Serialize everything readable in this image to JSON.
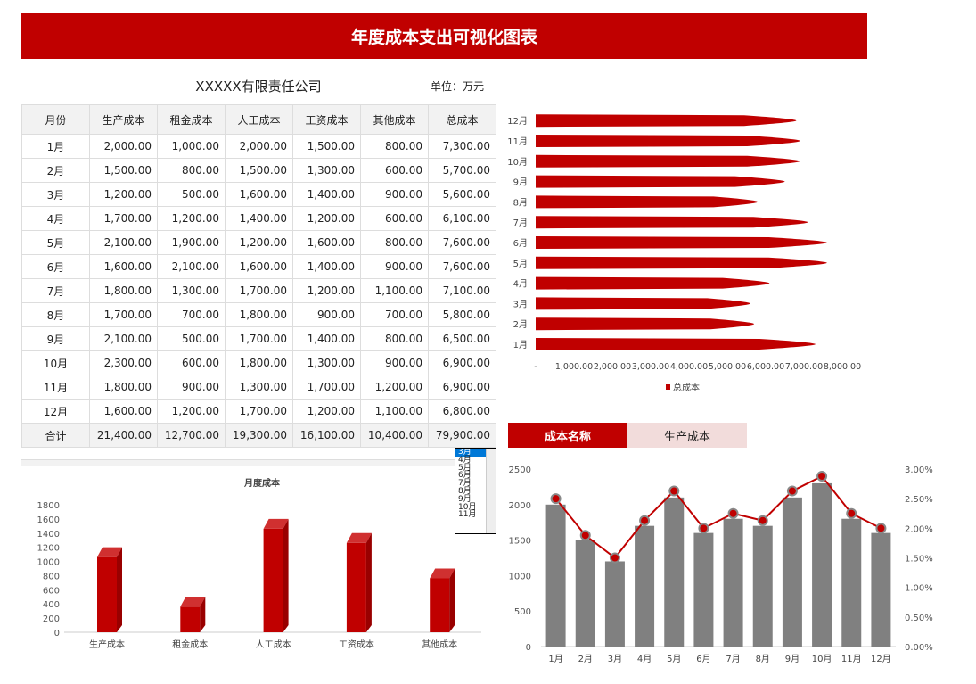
{
  "title": "年度成本支出可视化图表",
  "company": "XXXXX有限责任公司",
  "unit": "单位：万元",
  "table": {
    "headers": [
      "月份",
      "生产成本",
      "租金成本",
      "人工成本",
      "工资成本",
      "其他成本",
      "总成本"
    ],
    "rows": [
      [
        "1月",
        "2,000.00",
        "1,000.00",
        "2,000.00",
        "1,500.00",
        "800.00",
        "7,300.00"
      ],
      [
        "2月",
        "1,500.00",
        "800.00",
        "1,500.00",
        "1,300.00",
        "600.00",
        "5,700.00"
      ],
      [
        "3月",
        "1,200.00",
        "500.00",
        "1,600.00",
        "1,400.00",
        "900.00",
        "5,600.00"
      ],
      [
        "4月",
        "1,700.00",
        "1,200.00",
        "1,400.00",
        "1,200.00",
        "600.00",
        "6,100.00"
      ],
      [
        "5月",
        "2,100.00",
        "1,900.00",
        "1,200.00",
        "1,600.00",
        "800.00",
        "7,600.00"
      ],
      [
        "6月",
        "1,600.00",
        "2,100.00",
        "1,600.00",
        "1,400.00",
        "900.00",
        "7,600.00"
      ],
      [
        "7月",
        "1,800.00",
        "1,300.00",
        "1,700.00",
        "1,200.00",
        "1,100.00",
        "7,100.00"
      ],
      [
        "8月",
        "1,700.00",
        "700.00",
        "1,800.00",
        "900.00",
        "700.00",
        "5,800.00"
      ],
      [
        "9月",
        "2,100.00",
        "500.00",
        "1,700.00",
        "1,400.00",
        "800.00",
        "6,500.00"
      ],
      [
        "10月",
        "2,300.00",
        "600.00",
        "1,800.00",
        "1,300.00",
        "900.00",
        "6,900.00"
      ],
      [
        "11月",
        "1,800.00",
        "900.00",
        "1,300.00",
        "1,700.00",
        "1,200.00",
        "6,900.00"
      ],
      [
        "12月",
        "1,600.00",
        "1,200.00",
        "1,700.00",
        "1,200.00",
        "1,100.00",
        "6,800.00"
      ]
    ],
    "total": [
      "合计",
      "21,400.00",
      "12,700.00",
      "19,300.00",
      "16,100.00",
      "10,400.00",
      "79,900.00"
    ]
  },
  "listbox": {
    "items": [
      "3月",
      "4月",
      "5月",
      "6月",
      "7月",
      "8月",
      "9月",
      "10月",
      "11月"
    ],
    "selected": "3月"
  },
  "tabs": {
    "label": "成本名称",
    "value": "生产成本"
  },
  "colors": {
    "accent": "#c00000",
    "bar_gray": "#808080",
    "tab_light": "#f2dcdb"
  },
  "chart_data": [
    {
      "type": "bar",
      "orientation": "horizontal",
      "categories": [
        "1月",
        "2月",
        "3月",
        "4月",
        "5月",
        "6月",
        "7月",
        "8月",
        "9月",
        "10月",
        "11月",
        "12月"
      ],
      "series": [
        {
          "name": "总成本",
          "values": [
            7300,
            5700,
            5600,
            6100,
            7600,
            7600,
            7100,
            5800,
            6500,
            6900,
            6900,
            6800
          ]
        }
      ],
      "xlim": [
        0,
        8000
      ],
      "xticks": [
        "-",
        "1,000.00",
        "2,000.00",
        "3,000.00",
        "4,000.00",
        "5,000.00",
        "6,000.00",
        "7,000.00",
        "8,000.00"
      ],
      "legend": "bottom"
    },
    {
      "type": "bar",
      "title": "月度成本",
      "categories": [
        "生产成本",
        "租金成本",
        "人工成本",
        "工资成本",
        "其他成本"
      ],
      "values": [
        1200,
        500,
        1600,
        1400,
        900
      ],
      "ylim": [
        0,
        1800
      ],
      "yticks": [
        "0",
        "200",
        "400",
        "600",
        "800",
        "1000",
        "1200",
        "1400",
        "1600",
        "1800"
      ]
    },
    {
      "type": "bar+line",
      "categories": [
        "1月",
        "2月",
        "3月",
        "4月",
        "5月",
        "6月",
        "7月",
        "8月",
        "9月",
        "10月",
        "11月",
        "12月"
      ],
      "series": [
        {
          "type": "bar",
          "values": [
            2000,
            1500,
            1200,
            1700,
            2100,
            1600,
            1800,
            1700,
            2100,
            2300,
            1800,
            1600
          ]
        },
        {
          "type": "line",
          "axis": "right",
          "values": [
            2.5,
            1.88,
            1.5,
            2.13,
            2.63,
            2.0,
            2.25,
            2.13,
            2.63,
            2.88,
            2.25,
            2.0
          ]
        }
      ],
      "ylim": [
        0,
        2500
      ],
      "yticks": [
        "0",
        "500",
        "1000",
        "1500",
        "2000",
        "2500"
      ],
      "y2lim": [
        0,
        3
      ],
      "y2ticks": [
        "0.00%",
        "0.50%",
        "1.00%",
        "1.50%",
        "2.00%",
        "2.50%",
        "3.00%"
      ]
    }
  ]
}
